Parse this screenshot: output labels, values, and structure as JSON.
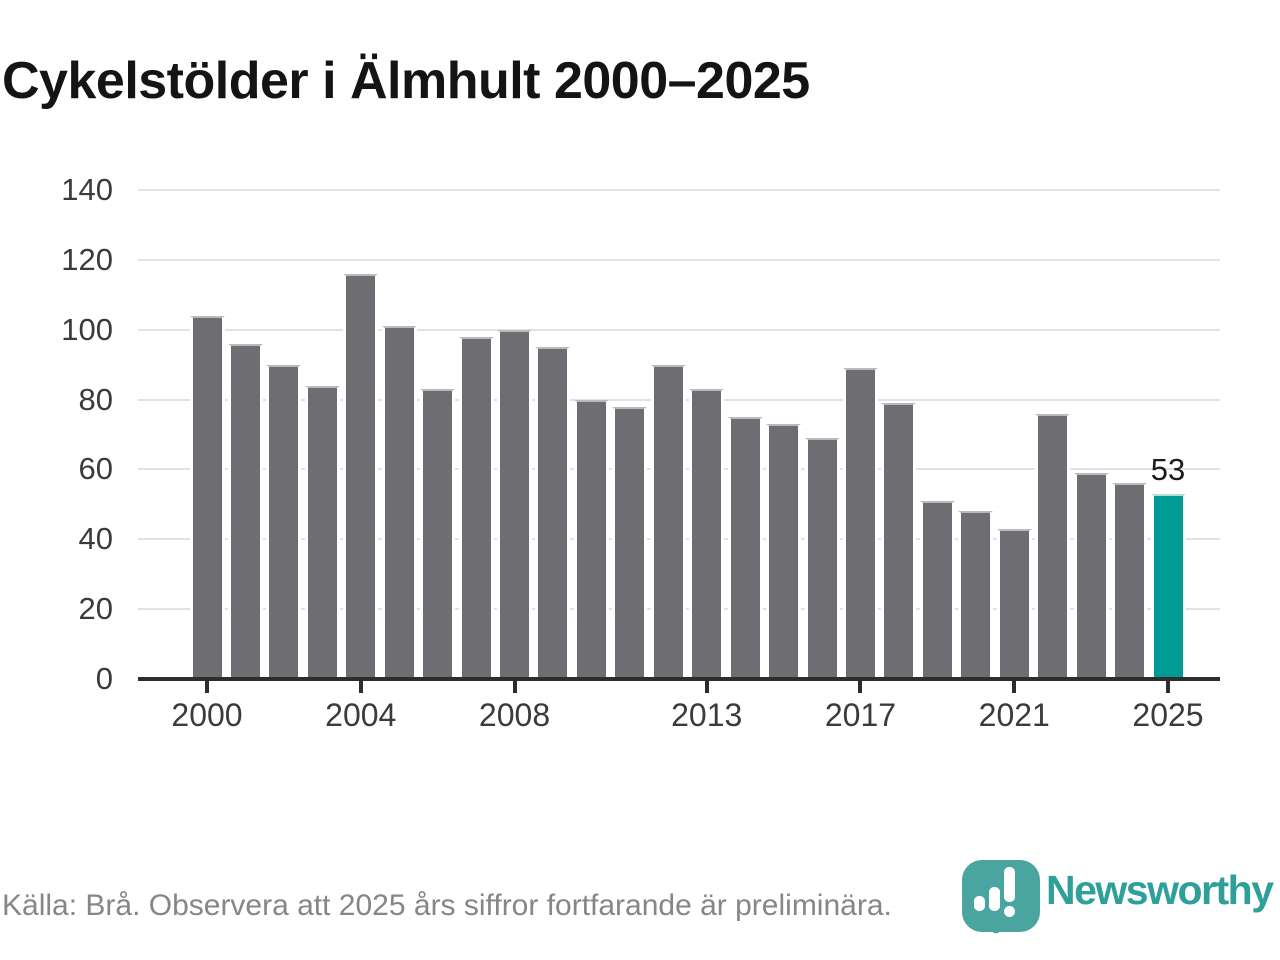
{
  "title": "Cykelstölder i Älmhult 2000–2025",
  "chart_data": {
    "type": "bar",
    "title": "Cykelstölder i Älmhult 2000–2025",
    "categories": [
      "2000",
      "2001",
      "2002",
      "2003",
      "2004",
      "2005",
      "2006",
      "2007",
      "2008",
      "2009",
      "2010",
      "2011",
      "2012",
      "2013",
      "2014",
      "2015",
      "2016",
      "2017",
      "2018",
      "2019",
      "2020",
      "2021",
      "2022",
      "2023",
      "2024",
      "2025"
    ],
    "values": [
      104,
      96,
      90,
      84,
      116,
      101,
      83,
      98,
      100,
      95,
      80,
      78,
      90,
      83,
      75,
      73,
      69,
      89,
      79,
      51,
      48,
      43,
      76,
      59,
      56,
      53
    ],
    "xlabel": "",
    "ylabel": "",
    "ylim": [
      0,
      140
    ],
    "y_ticks": [
      0,
      20,
      40,
      60,
      80,
      100,
      120,
      140
    ],
    "x_tick_labels": [
      "2000",
      "2004",
      "2008",
      "2013",
      "2017",
      "2021",
      "2025"
    ],
    "grid": true,
    "legend": "none",
    "bar_color": "#6e6d72",
    "highlight_color": "#009b94",
    "highlight_index": 25,
    "annotation": {
      "index": 25,
      "label": "53"
    }
  },
  "footer": {
    "source_note": "Källa: Brå. Observera att 2025 års siffror fortfarande är preliminära.",
    "brand": "Newsworthy",
    "brand_color": "#2f9f99",
    "brand_icon": "newsworthy-pin-barchart-icon"
  }
}
